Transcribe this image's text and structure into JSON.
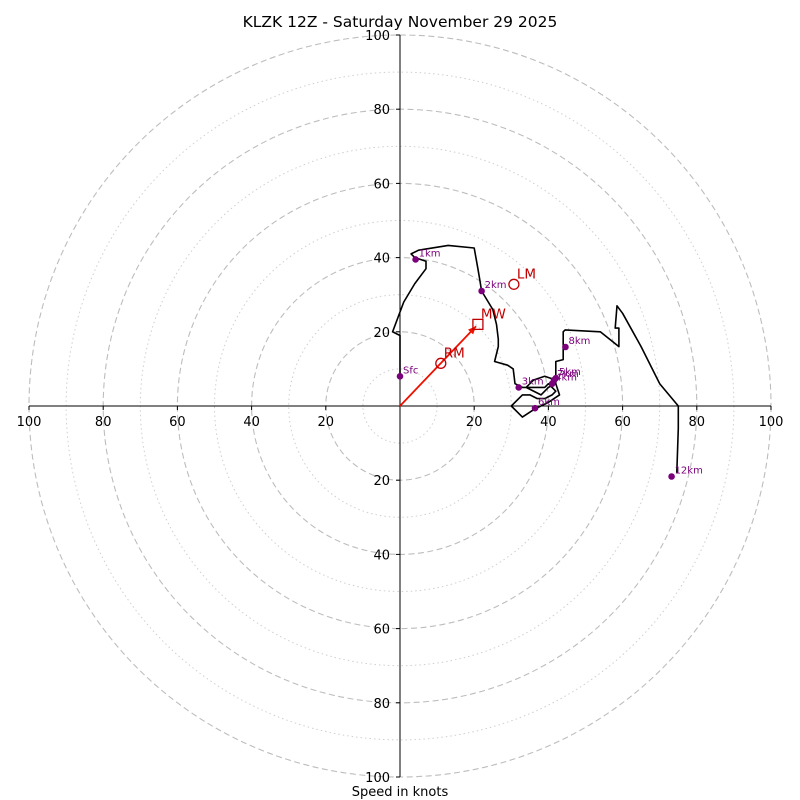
{
  "chart_data": {
    "type": "hodograph",
    "title": "KLZK 12Z - Saturday November 29 2025",
    "xlabel": "Speed in knots",
    "ylabel": "",
    "range": [
      -100,
      100
    ],
    "axis_ticks": {
      "left": [
        "100",
        "80",
        "60",
        "40",
        "20"
      ],
      "right": [
        "20",
        "40",
        "60",
        "80",
        "100"
      ],
      "up": [
        "20",
        "40",
        "60",
        "80",
        "100"
      ],
      "down": [
        "20",
        "40",
        "60",
        "80",
        "100"
      ]
    },
    "rings": {
      "major_kt": [
        20,
        40,
        60,
        80,
        100
      ],
      "minor_kt": [
        10,
        30,
        50,
        70,
        90
      ]
    },
    "hodograph_trace": [
      [
        0,
        8
      ],
      [
        0,
        19
      ],
      [
        -2,
        20
      ],
      [
        1,
        28
      ],
      [
        4,
        33
      ],
      [
        7,
        37
      ],
      [
        7,
        39
      ],
      [
        4,
        40
      ],
      [
        3,
        41
      ],
      [
        5,
        42
      ],
      [
        13,
        43.3
      ],
      [
        20,
        42.6
      ],
      [
        21,
        37
      ],
      [
        21.5,
        34
      ],
      [
        22,
        31
      ],
      [
        25,
        26
      ],
      [
        26,
        22
      ],
      [
        26.5,
        18
      ],
      [
        26.5,
        16
      ],
      [
        25.5,
        12
      ],
      [
        29,
        11
      ],
      [
        30.5,
        10
      ],
      [
        31,
        6
      ],
      [
        33,
        5
      ],
      [
        34,
        5
      ],
      [
        36,
        7
      ],
      [
        39,
        8
      ],
      [
        42,
        7
      ],
      [
        42,
        6
      ],
      [
        40,
        5
      ],
      [
        38,
        3
      ],
      [
        34,
        5
      ],
      [
        39,
        5
      ],
      [
        40,
        6
      ],
      [
        42,
        4
      ],
      [
        41,
        3
      ],
      [
        39,
        2
      ],
      [
        37,
        2
      ],
      [
        35,
        3
      ],
      [
        33,
        3
      ],
      [
        30,
        0
      ],
      [
        33,
        -3
      ],
      [
        36,
        -1
      ],
      [
        40,
        1
      ],
      [
        43,
        3
      ],
      [
        42,
        6
      ],
      [
        42,
        12
      ],
      [
        44,
        12.5
      ],
      [
        44,
        20
      ],
      [
        44.5,
        20.5
      ],
      [
        54,
        20
      ],
      [
        59,
        16
      ],
      [
        59,
        21
      ],
      [
        58,
        21
      ],
      [
        58.5,
        27
      ],
      [
        60,
        25
      ],
      [
        65,
        16
      ],
      [
        70,
        6
      ],
      [
        75,
        0
      ],
      [
        75,
        -6
      ],
      [
        74.6,
        -18
      ]
    ],
    "height_markers": [
      {
        "label": "Sfc",
        "u": 0,
        "v": 8
      },
      {
        "label": "1km",
        "u": 4.2,
        "v": 39.5
      },
      {
        "label": "2km",
        "u": 22,
        "v": 31
      },
      {
        "label": "3km",
        "u": 32,
        "v": 5
      },
      {
        "label": "4km",
        "u": 41,
        "v": 6
      },
      {
        "label": "5km",
        "u": 42,
        "v": 7.5
      },
      {
        "label": "7km",
        "u": 41.5,
        "v": 7
      },
      {
        "label": "6km",
        "u": 36.4,
        "v": -0.6
      },
      {
        "label": "8km",
        "u": 44.6,
        "v": 15.9
      },
      {
        "label": "12km",
        "u": 73.2,
        "v": -19
      }
    ],
    "storm_motion": [
      {
        "label": "MW",
        "u": 21,
        "v": 22,
        "marker": "square"
      },
      {
        "label": "LM",
        "u": 30.7,
        "v": 32.8,
        "marker": "circle"
      },
      {
        "label": "RM",
        "u": 11,
        "v": 11.5,
        "marker": "circle"
      }
    ],
    "shear_vector": {
      "from": [
        0,
        0
      ],
      "to": [
        20.5,
        21.5
      ]
    },
    "colors": {
      "trace": "#000000",
      "height_marker": "#7b007b",
      "storm_motion": "#c00000",
      "shear_vector": "#ee1100",
      "rings": "#bdbdbd"
    }
  }
}
